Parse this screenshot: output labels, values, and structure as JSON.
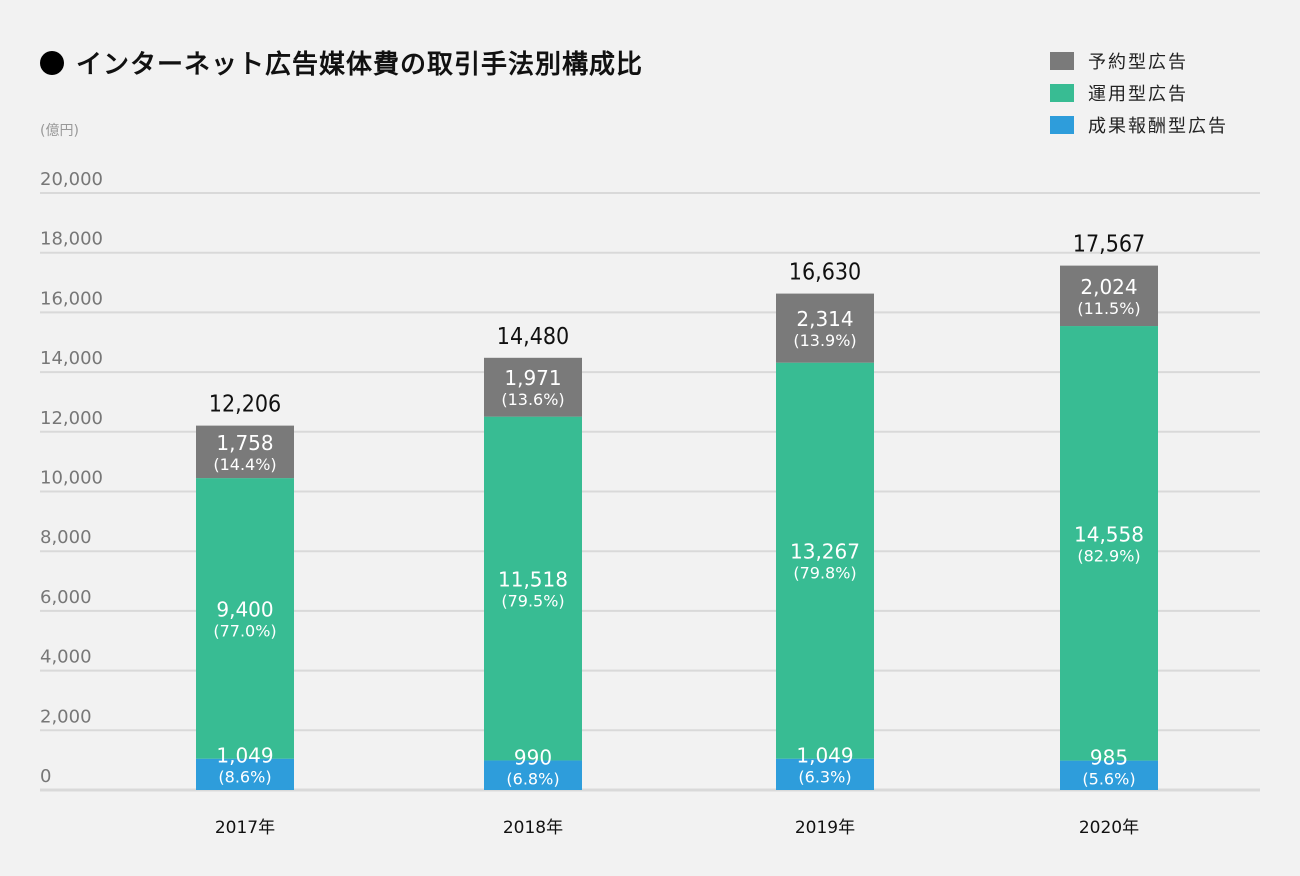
{
  "title": "インターネット広告媒体費の取引手法別構成比",
  "unit_label": "(億円)",
  "legend": [
    {
      "label": "予約型広告",
      "color": "#7a7a7a"
    },
    {
      "label": "運用型広告",
      "color": "#38bc93"
    },
    {
      "label": "成果報酬型広告",
      "color": "#2e9ddb"
    }
  ],
  "chart_data": {
    "type": "bar",
    "stacked": true,
    "title": "インターネット広告媒体費の取引手法別構成比",
    "ylabel": "(億円)",
    "xlabel": "",
    "ylim": [
      0,
      20000
    ],
    "yticks": [
      0,
      2000,
      4000,
      6000,
      8000,
      10000,
      12000,
      14000,
      16000,
      18000,
      20000
    ],
    "ytick_labels": [
      "0",
      "2,000",
      "4,000",
      "6,000",
      "8,000",
      "10,000",
      "12,000",
      "14,000",
      "16,000",
      "18,000",
      "20,000"
    ],
    "grid": true,
    "legend_position": "top-right",
    "categories": [
      "2017年",
      "2018年",
      "2019年",
      "2020年"
    ],
    "totals": [
      12206,
      14480,
      16630,
      17567
    ],
    "total_labels": [
      "12,206",
      "14,480",
      "16,630",
      "17,567"
    ],
    "series": [
      {
        "name": "成果報酬型広告",
        "color": "#2e9ddb",
        "values": [
          1049,
          990,
          1049,
          985
        ],
        "value_labels": [
          "1,049",
          "990",
          "1,049",
          "985"
        ],
        "percent_labels": [
          "(8.6%)",
          "(6.8%)",
          "(6.3%)",
          "(5.6%)"
        ]
      },
      {
        "name": "運用型広告",
        "color": "#38bc93",
        "values": [
          9400,
          11518,
          13267,
          14558
        ],
        "value_labels": [
          "9,400",
          "11,518",
          "13,267",
          "14,558"
        ],
        "percent_labels": [
          "(77.0%)",
          "(79.5%)",
          "(79.8%)",
          "(82.9%)"
        ]
      },
      {
        "name": "予約型広告",
        "color": "#7a7a7a",
        "values": [
          1758,
          1971,
          2314,
          2024
        ],
        "value_labels": [
          "1,758",
          "1,971",
          "2,314",
          "2,024"
        ],
        "percent_labels": [
          "(14.4%)",
          "(13.6%)",
          "(13.9%)",
          "(11.5%)"
        ]
      }
    ]
  }
}
